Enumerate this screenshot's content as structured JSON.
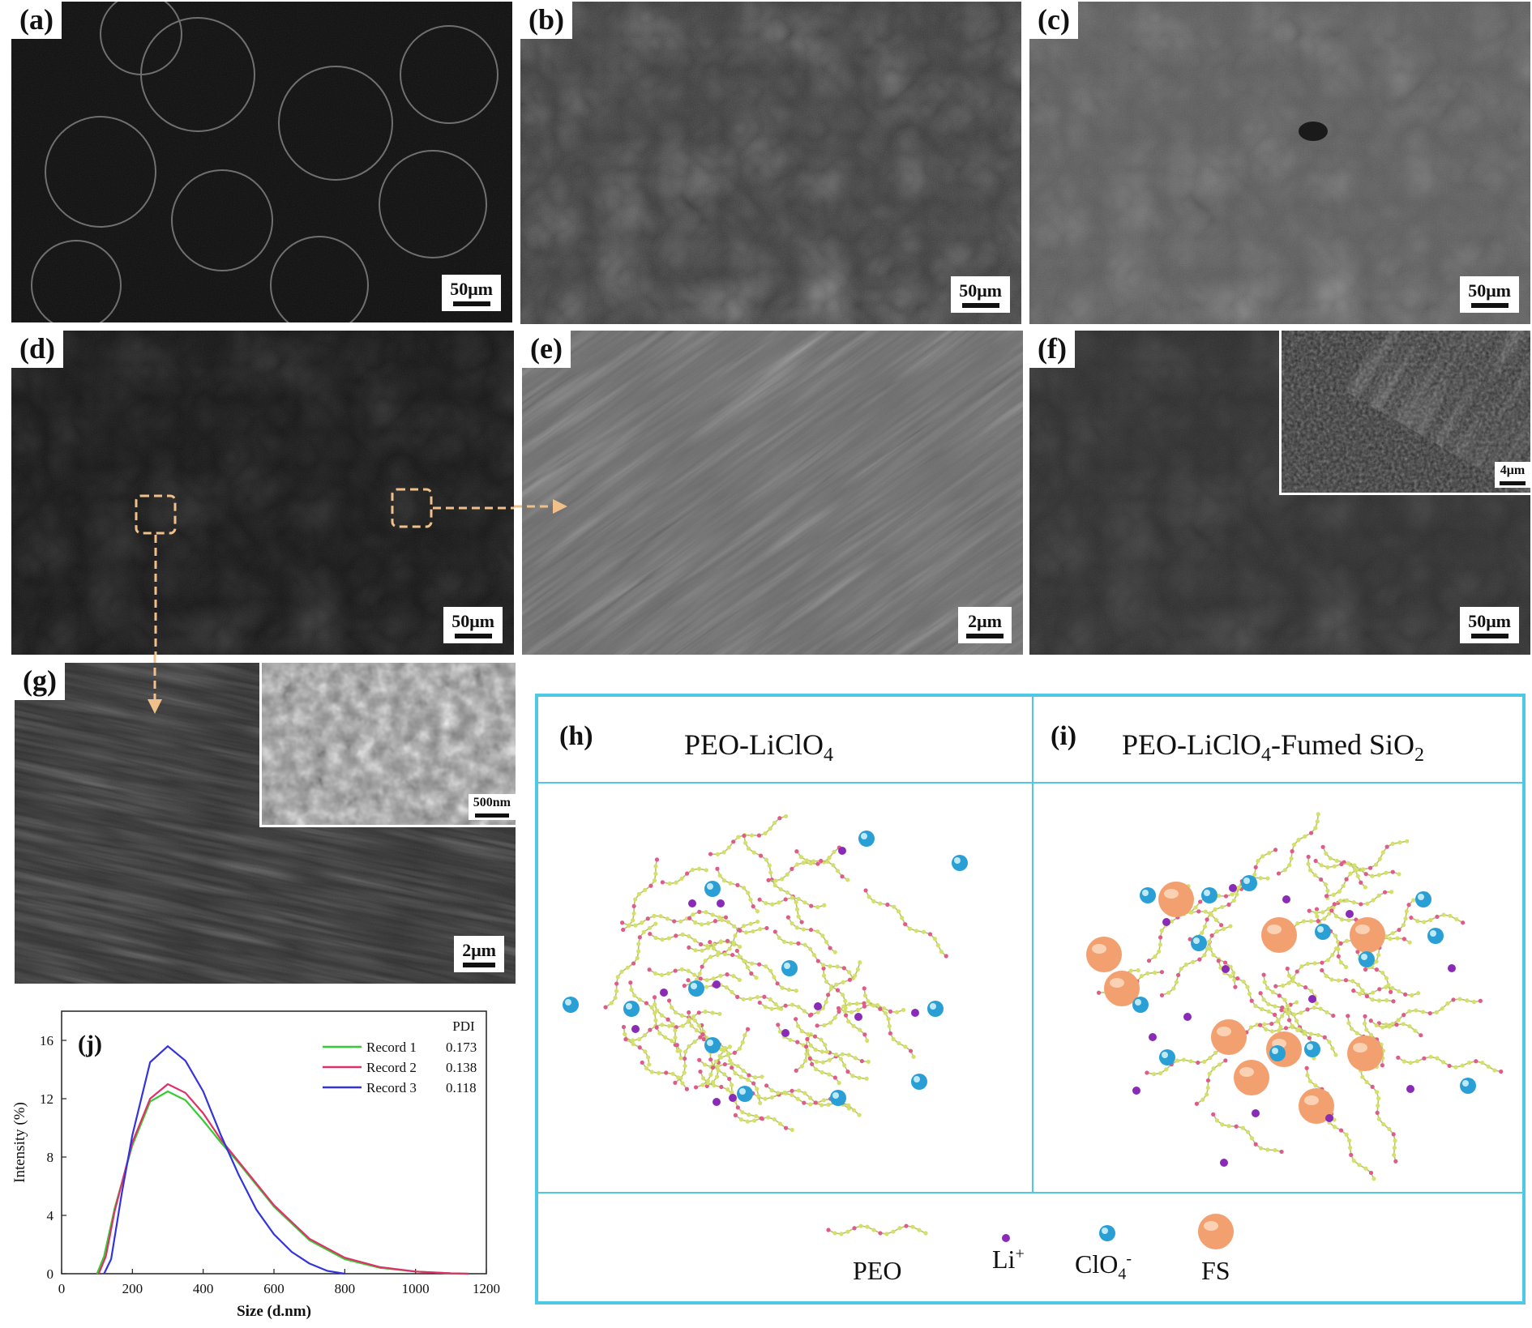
{
  "panels": {
    "a": {
      "label": "(a)",
      "scale": "50μm"
    },
    "b": {
      "label": "(b)",
      "scale": "50μm"
    },
    "c": {
      "label": "(c)",
      "scale": "50μm"
    },
    "d": {
      "label": "(d)",
      "scale": "50μm"
    },
    "e": {
      "label": "(e)",
      "scale": "2μm"
    },
    "f": {
      "label": "(f)",
      "scale": "50μm",
      "inset_scale": "4μm"
    },
    "g": {
      "label": "(g)",
      "scale": "2μm",
      "inset_scale": "500nm"
    }
  },
  "schematic": {
    "h": {
      "label": "(h)",
      "title_main": "PEO-LiClO",
      "title_sub": "4"
    },
    "i": {
      "label": "(i)",
      "title_a": "PEO-LiClO",
      "title_sub1": "4",
      "title_b": "-Fumed SiO",
      "title_sub2": "2"
    },
    "legend": {
      "peo": "PEO",
      "li": "Li",
      "li_sup": "+",
      "clo": "ClO",
      "clo_sub": "4",
      "clo_sup": "-",
      "fs": "FS"
    },
    "colors": {
      "border": "#4fc9e3",
      "li": "#8a2bb8",
      "clo": "#2a9fd6",
      "fs": "#f2a070",
      "chain_a": "#d4e06a",
      "chain_b": "#e05a8a"
    }
  },
  "chart_data": {
    "type": "line",
    "panel_label": "(j)",
    "xlabel": "Size (d.nm)",
    "ylabel": "Intensity (%)",
    "xlim": [
      0,
      1200
    ],
    "ylim": [
      0,
      18
    ],
    "xticks": [
      0,
      200,
      400,
      600,
      800,
      1000,
      1200
    ],
    "yticks": [
      0,
      4,
      8,
      12,
      16
    ],
    "legend_header": "PDI",
    "legend_position": "top-right",
    "series": [
      {
        "name": "Record 1",
        "pdi": "0.173",
        "color": "#33cc33",
        "x": [
          100,
          120,
          150,
          200,
          250,
          300,
          350,
          400,
          450,
          500,
          600,
          700,
          800,
          900,
          1000,
          1100,
          1150
        ],
        "y": [
          0,
          1.2,
          4.5,
          8.8,
          11.8,
          12.5,
          11.9,
          10.5,
          9.0,
          7.6,
          4.6,
          2.3,
          1.0,
          0.4,
          0.15,
          0.03,
          0
        ]
      },
      {
        "name": "Record 2",
        "pdi": "0.138",
        "color": "#e0306a",
        "x": [
          105,
          125,
          150,
          200,
          250,
          300,
          350,
          400,
          450,
          500,
          600,
          700,
          800,
          900,
          1000,
          1100,
          1150
        ],
        "y": [
          0,
          1.2,
          4.3,
          9.0,
          12.0,
          13.0,
          12.4,
          11.0,
          9.2,
          7.7,
          4.7,
          2.4,
          1.1,
          0.45,
          0.15,
          0.03,
          0
        ]
      },
      {
        "name": "Record 3",
        "pdi": "0.118",
        "color": "#3333dd",
        "x": [
          120,
          140,
          170,
          200,
          250,
          300,
          350,
          400,
          450,
          500,
          550,
          600,
          650,
          700,
          750,
          800
        ],
        "y": [
          0,
          1.0,
          5.5,
          9.5,
          14.5,
          15.6,
          14.6,
          12.5,
          9.5,
          6.8,
          4.4,
          2.7,
          1.5,
          0.7,
          0.2,
          0
        ]
      }
    ]
  }
}
